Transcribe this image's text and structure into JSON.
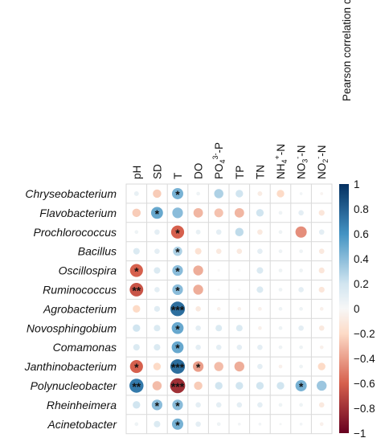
{
  "chart_data": {
    "type": "heatmap",
    "title": "",
    "colorbar_label": "Pearson correlation coefficient",
    "columns": [
      {
        "main": "pH",
        "sup": "",
        "sub": "",
        "tail": ""
      },
      {
        "main": "SD",
        "sup": "",
        "sub": "",
        "tail": ""
      },
      {
        "main": "T",
        "sup": "",
        "sub": "",
        "tail": ""
      },
      {
        "main": "DO",
        "sup": "",
        "sub": "",
        "tail": ""
      },
      {
        "main": "PO",
        "sup": "3-",
        "sub": "4",
        "tail": "-P"
      },
      {
        "main": "TP",
        "sup": "",
        "sub": "",
        "tail": ""
      },
      {
        "main": "TN",
        "sup": "",
        "sub": "",
        "tail": ""
      },
      {
        "main": "NH",
        "sup": "+",
        "sub": "4",
        "tail": "-N"
      },
      {
        "main": "NO",
        "sup": "-",
        "sub": "3",
        "tail": "-N"
      },
      {
        "main": "NO",
        "sup": "-",
        "sub": "2",
        "tail": "-N"
      }
    ],
    "rows": [
      "Chryseobacterium",
      "Flavobacterium",
      "Prochlorococcus",
      "Bacillus",
      "Oscillospira",
      "Ruminococcus",
      "Agrobacterium",
      "Novosphingobium",
      "Comamonas",
      "Janthinobacterium",
      "Polynucleobacter",
      "Rheinheimera",
      "Acinetobacter"
    ],
    "values": [
      [
        0.08,
        -0.25,
        0.45,
        0.05,
        0.3,
        0.2,
        -0.08,
        -0.2,
        0.03,
        -0.03
      ],
      [
        -0.25,
        0.5,
        0.4,
        -0.32,
        -0.28,
        -0.32,
        0.2,
        0.05,
        0.1,
        -0.12
      ],
      [
        0.05,
        0.1,
        -0.6,
        0.08,
        0.1,
        0.25,
        -0.1,
        0.05,
        -0.45,
        0.1
      ],
      [
        0.15,
        0.1,
        0.3,
        -0.15,
        -0.1,
        -0.1,
        0.1,
        0.05,
        0.05,
        -0.1
      ],
      [
        -0.6,
        0.15,
        0.4,
        -0.35,
        0.0,
        0.0,
        0.15,
        0.05,
        0.05,
        -0.12
      ],
      [
        -0.65,
        0.1,
        0.4,
        -0.35,
        0.0,
        0.0,
        0.15,
        0.05,
        0.1,
        -0.12
      ],
      [
        -0.2,
        0.12,
        0.75,
        -0.1,
        -0.05,
        -0.05,
        -0.05,
        0.05,
        0.05,
        -0.05
      ],
      [
        0.2,
        0.15,
        0.5,
        0.1,
        0.15,
        0.15,
        -0.05,
        0.05,
        0.1,
        -0.1
      ],
      [
        0.15,
        0.15,
        0.5,
        0.1,
        0.1,
        0.1,
        0.1,
        0.05,
        0.05,
        -0.05
      ],
      [
        -0.6,
        -0.2,
        0.75,
        -0.4,
        -0.3,
        -0.35,
        0.1,
        -0.05,
        0.05,
        -0.2
      ],
      [
        0.7,
        -0.3,
        -0.8,
        -0.25,
        0.2,
        0.2,
        0.2,
        0.2,
        0.45,
        0.35
      ],
      [
        0.2,
        0.4,
        0.4,
        0.1,
        0.1,
        0.1,
        0.1,
        0.05,
        0.05,
        -0.1
      ],
      [
        0.05,
        0.15,
        0.45,
        0.1,
        0.05,
        0.03,
        0.03,
        0.02,
        0.03,
        -0.05
      ]
    ],
    "stars": [
      [
        "",
        "",
        "*",
        "",
        "",
        "",
        "",
        "",
        "",
        ""
      ],
      [
        "",
        "*",
        "",
        "",
        "",
        "",
        "",
        "",
        "",
        ""
      ],
      [
        "",
        "",
        "*",
        "",
        "",
        "",
        "",
        "",
        "",
        ""
      ],
      [
        "",
        "",
        "*",
        "",
        "",
        "",
        "",
        "",
        "",
        ""
      ],
      [
        "*",
        "",
        "*",
        "",
        "",
        "",
        "",
        "",
        "",
        ""
      ],
      [
        "**",
        "",
        "*",
        "",
        "",
        "",
        "",
        "",
        "",
        ""
      ],
      [
        "",
        "",
        "***",
        "",
        "",
        "",
        "",
        "",
        "",
        ""
      ],
      [
        "",
        "",
        "*",
        "",
        "",
        "",
        "",
        "",
        "",
        ""
      ],
      [
        "",
        "",
        "*",
        "",
        "",
        "",
        "",
        "",
        "",
        ""
      ],
      [
        "*",
        "",
        "***",
        "*",
        "",
        "",
        "",
        "",
        "",
        ""
      ],
      [
        "**",
        "",
        "***",
        "",
        "",
        "",
        "",
        "",
        "*",
        ""
      ],
      [
        "",
        "*",
        "*",
        "",
        "",
        "",
        "",
        "",
        "",
        ""
      ],
      [
        "",
        "",
        "*",
        "",
        "",
        "",
        "",
        "",
        "",
        ""
      ]
    ],
    "colorbar": {
      "range": [
        -1,
        1
      ],
      "ticks": [
        "1",
        "0.8",
        "0.6",
        "0.4",
        "0.2",
        "0",
        "−0.2",
        "−0.4",
        "−0.6",
        "−0.8",
        "−1"
      ],
      "tick_values": [
        1,
        0.8,
        0.6,
        0.4,
        0.2,
        0,
        -0.2,
        -0.4,
        -0.6,
        -0.8,
        -1
      ]
    },
    "colors": {
      "neg_strong": "#67001f",
      "neg_mid": "#d6604d",
      "neg_light": "#fddbc7",
      "neutral": "#f7f7f7",
      "pos_light": "#d1e5f0",
      "pos_mid": "#4393c3",
      "pos_strong": "#053061",
      "grid": "#d9d9d9"
    }
  }
}
